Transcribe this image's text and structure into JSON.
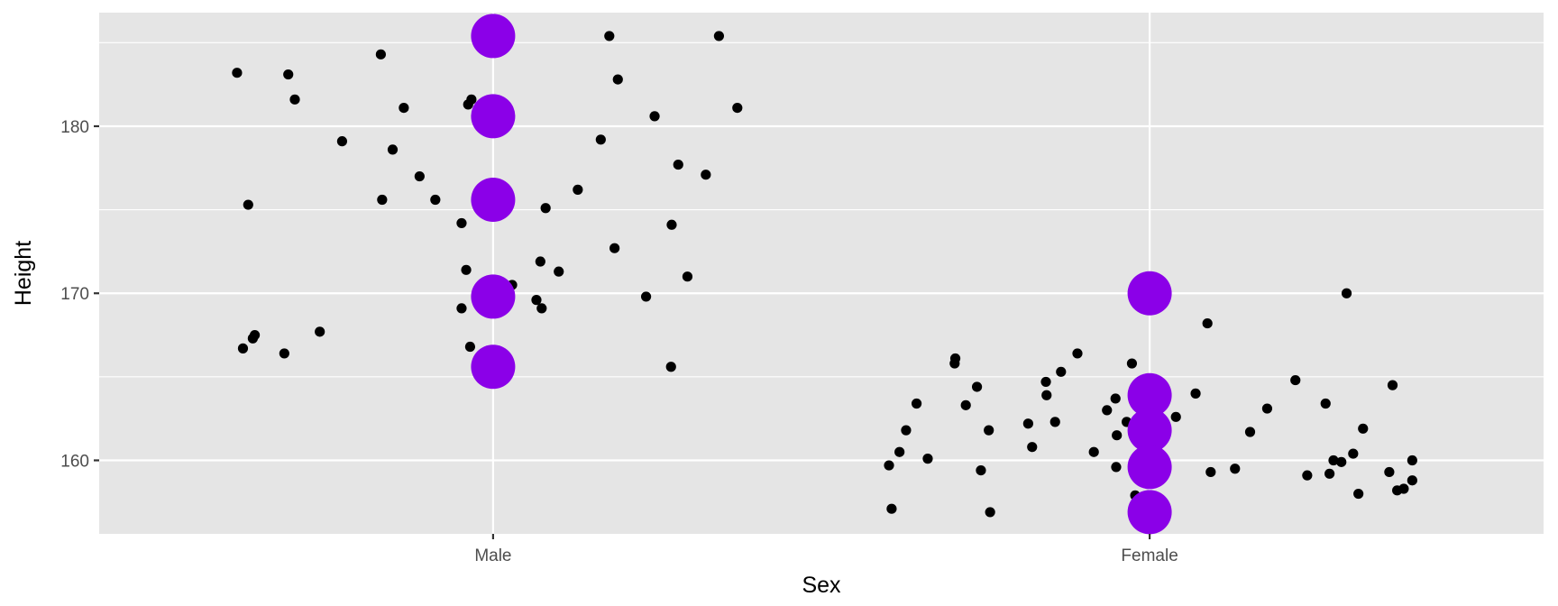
{
  "chart_data": {
    "type": "scatter",
    "title": "",
    "xlabel": "Sex",
    "ylabel": "Height",
    "categories": [
      "Male",
      "Female"
    ],
    "ylim": [
      155.6,
      186.8
    ],
    "yticks": [
      160,
      170,
      180
    ],
    "grid": true,
    "legend": "none",
    "colors": {
      "panel": "#e5e5e5",
      "grid": "#ffffff",
      "points": "#000000",
      "highlight": "#8b00e8",
      "tick_text": "#4d4d4d",
      "axis_text": "#000000"
    },
    "series": [
      {
        "values": [
          {
            "x": -0.39,
            "y": 183.2
          },
          {
            "x": -0.312,
            "y": 183.1
          },
          {
            "x": -0.302,
            "y": 181.6
          },
          {
            "x": -0.171,
            "y": 184.3
          },
          {
            "x": -0.23,
            "y": 179.1
          },
          {
            "x": -0.136,
            "y": 181.1
          },
          {
            "x": -0.153,
            "y": 178.6
          },
          {
            "x": -0.112,
            "y": 177.0
          },
          {
            "x": -0.088,
            "y": 175.6
          },
          {
            "x": -0.169,
            "y": 175.6
          },
          {
            "x": -0.373,
            "y": 175.3
          },
          {
            "x": -0.048,
            "y": 174.2
          },
          {
            "x": -0.041,
            "y": 171.4
          },
          {
            "x": -0.038,
            "y": 181.3
          },
          {
            "x": -0.033,
            "y": 181.6
          },
          {
            "x": -0.048,
            "y": 169.1
          },
          {
            "x": -0.035,
            "y": 166.8
          },
          {
            "x": -0.381,
            "y": 166.7
          },
          {
            "x": -0.366,
            "y": 167.3
          },
          {
            "x": -0.363,
            "y": 167.5
          },
          {
            "x": -0.318,
            "y": 166.4
          },
          {
            "x": -0.264,
            "y": 167.7
          },
          {
            "x": 0.029,
            "y": 170.5
          },
          {
            "x": 0.066,
            "y": 169.6
          },
          {
            "x": 0.074,
            "y": 169.1
          },
          {
            "x": 0.072,
            "y": 171.9
          },
          {
            "x": 0.1,
            "y": 171.3
          },
          {
            "x": 0.08,
            "y": 175.1
          },
          {
            "x": 0.129,
            "y": 176.2
          },
          {
            "x": 0.164,
            "y": 179.2
          },
          {
            "x": 0.177,
            "y": 185.4
          },
          {
            "x": 0.19,
            "y": 182.8
          },
          {
            "x": 0.185,
            "y": 172.7
          },
          {
            "x": 0.246,
            "y": 180.6
          },
          {
            "x": 0.282,
            "y": 177.7
          },
          {
            "x": 0.272,
            "y": 174.1
          },
          {
            "x": 0.233,
            "y": 169.8
          },
          {
            "x": 0.296,
            "y": 171.0
          },
          {
            "x": 0.271,
            "y": 165.6
          },
          {
            "x": 0.324,
            "y": 177.1
          },
          {
            "x": 0.344,
            "y": 185.4
          },
          {
            "x": 0.372,
            "y": 181.1
          },
          {
            "x": 0.603,
            "y": 159.7
          },
          {
            "x": 0.619,
            "y": 160.5
          },
          {
            "x": 0.607,
            "y": 157.1
          },
          {
            "x": 0.629,
            "y": 161.8
          },
          {
            "x": 0.645,
            "y": 163.4
          },
          {
            "x": 0.662,
            "y": 160.1
          },
          {
            "x": 0.703,
            "y": 165.8
          },
          {
            "x": 0.704,
            "y": 166.1
          },
          {
            "x": 0.72,
            "y": 163.3
          },
          {
            "x": 0.737,
            "y": 164.4
          },
          {
            "x": 0.743,
            "y": 159.4
          },
          {
            "x": 0.755,
            "y": 161.8
          },
          {
            "x": 0.757,
            "y": 156.9
          },
          {
            "x": 0.815,
            "y": 162.2
          },
          {
            "x": 0.821,
            "y": 160.8
          },
          {
            "x": 0.842,
            "y": 164.7
          },
          {
            "x": 0.843,
            "y": 163.9
          },
          {
            "x": 0.856,
            "y": 162.3
          },
          {
            "x": 0.865,
            "y": 165.3
          },
          {
            "x": 0.89,
            "y": 166.4
          },
          {
            "x": 0.915,
            "y": 160.5
          },
          {
            "x": 0.935,
            "y": 163.0
          },
          {
            "x": 0.948,
            "y": 163.7
          },
          {
            "x": 0.95,
            "y": 161.5
          },
          {
            "x": 0.949,
            "y": 159.6
          },
          {
            "x": 0.965,
            "y": 162.3
          },
          {
            "x": 0.973,
            "y": 165.8
          },
          {
            "x": 0.978,
            "y": 157.9
          },
          {
            "x": 1.04,
            "y": 162.6
          },
          {
            "x": 1.07,
            "y": 164.0
          },
          {
            "x": 1.088,
            "y": 168.2
          },
          {
            "x": 1.093,
            "y": 159.3
          },
          {
            "x": 1.13,
            "y": 159.5
          },
          {
            "x": 1.153,
            "y": 161.7
          },
          {
            "x": 1.179,
            "y": 163.1
          },
          {
            "x": 1.222,
            "y": 164.8
          },
          {
            "x": 1.24,
            "y": 159.1
          },
          {
            "x": 1.268,
            "y": 163.4
          },
          {
            "x": 1.274,
            "y": 159.2
          },
          {
            "x": 1.28,
            "y": 160.0
          },
          {
            "x": 1.3,
            "y": 170.0
          },
          {
            "x": 1.292,
            "y": 159.9
          },
          {
            "x": 1.31,
            "y": 160.4
          },
          {
            "x": 1.318,
            "y": 158.0
          },
          {
            "x": 1.325,
            "y": 161.9
          },
          {
            "x": 1.365,
            "y": 159.3
          },
          {
            "x": 1.37,
            "y": 164.5
          },
          {
            "x": 1.377,
            "y": 158.2
          },
          {
            "x": 1.387,
            "y": 158.3
          },
          {
            "x": 1.4,
            "y": 160.0
          },
          {
            "x": 1.4,
            "y": 158.8
          }
        ]
      },
      {
        "values": [
          {
            "x": 0,
            "y": 185.4
          },
          {
            "x": 0,
            "y": 180.6
          },
          {
            "x": 0,
            "y": 175.6
          },
          {
            "x": 0,
            "y": 169.8
          },
          {
            "x": 0,
            "y": 165.6
          },
          {
            "x": 1,
            "y": 170.0
          },
          {
            "x": 1,
            "y": 163.9
          },
          {
            "x": 1,
            "y": 161.8
          },
          {
            "x": 1,
            "y": 159.6
          },
          {
            "x": 1,
            "y": 156.9
          }
        ]
      }
    ]
  }
}
